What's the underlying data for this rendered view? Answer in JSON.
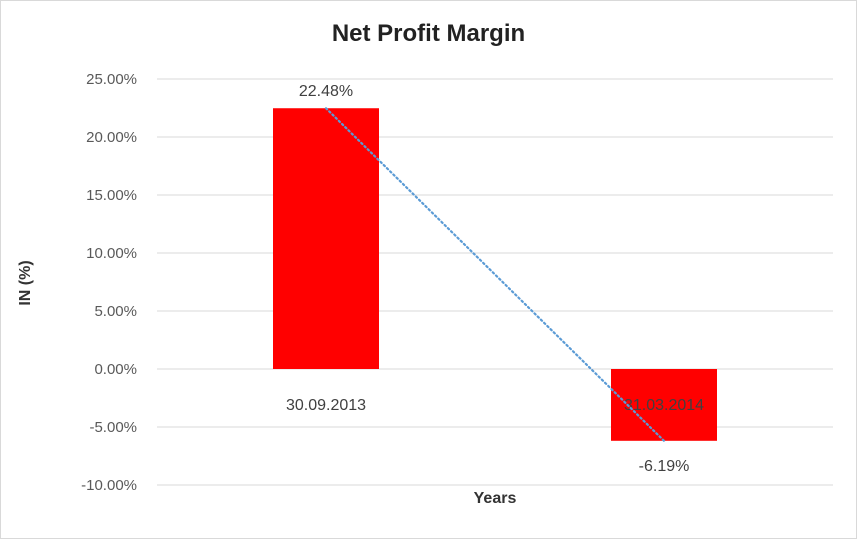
{
  "chart_data": {
    "type": "bar",
    "title": "Net Profit Margin",
    "xlabel": "Years",
    "ylabel": "IN (%)",
    "categories": [
      "30.09.2013",
      "31.03.2014"
    ],
    "values": [
      22.48,
      -6.19
    ],
    "data_labels": [
      "22.48%",
      "-6.19%"
    ],
    "ylim": [
      -10,
      25
    ],
    "yticks": [
      25,
      20,
      15,
      10,
      5,
      0,
      -5,
      -10
    ],
    "ytick_labels": [
      "25.00%",
      "20.00%",
      "15.00%",
      "10.00%",
      "5.00%",
      "0.00%",
      "-5.00%",
      "-10.00%"
    ],
    "grid": true,
    "legend": "none",
    "trendline": "linear (dotted)",
    "bar_color": "#ff0000",
    "trendline_color": "#5b9bd5",
    "grid_color": "#d9d9d9"
  }
}
